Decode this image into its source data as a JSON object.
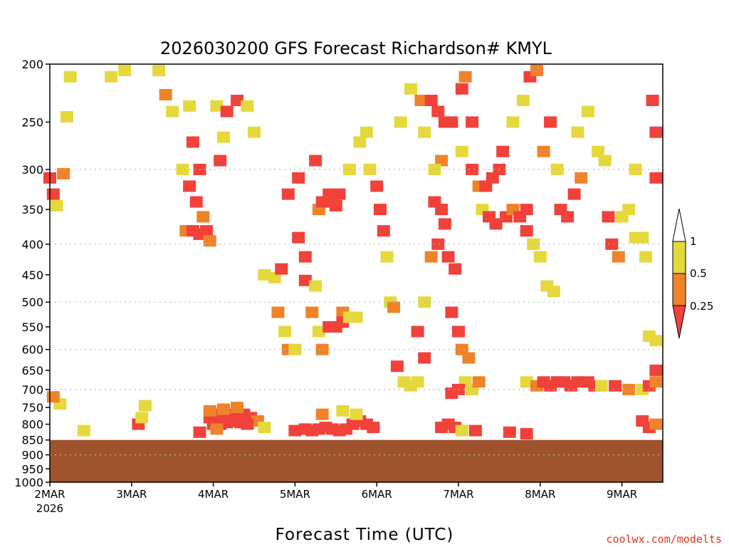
{
  "chart_data": {
    "type": "heatmap",
    "title": "2026030200 GFS Forecast Richardson# KMYL",
    "xlabel": "Forecast Time (UTC)",
    "ylabel": "",
    "credit": "coolwx.com/modelts",
    "y_axis": {
      "scale": "log-pressure",
      "range_hpa": [
        1000,
        200
      ],
      "ticks": [
        200,
        250,
        300,
        350,
        400,
        450,
        500,
        550,
        600,
        650,
        700,
        750,
        800,
        850,
        900,
        950,
        1000
      ],
      "dotted_gridlines_hpa": [
        300,
        400,
        500,
        600,
        700,
        900,
        1000
      ]
    },
    "x_axis": {
      "ticks": [
        {
          "label": "2MAR",
          "sublabel": "2026"
        },
        {
          "label": "3MAR"
        },
        {
          "label": "4MAR"
        },
        {
          "label": "5MAR"
        },
        {
          "label": "6MAR"
        },
        {
          "label": "7MAR"
        },
        {
          "label": "8MAR"
        },
        {
          "label": "9MAR"
        }
      ],
      "range_hours": [
        0,
        180
      ],
      "tick_hours": [
        0,
        24,
        48,
        72,
        96,
        120,
        144,
        168
      ]
    },
    "colorbar": {
      "levels": [
        "1",
        "0.5",
        "0.25"
      ],
      "bins": [
        {
          "range": "0.5-1",
          "color": "#e5d83c"
        },
        {
          "range": "0.25-0.5",
          "color": "#ee8329"
        },
        {
          "range": "<0.25",
          "color": "#f0413b"
        }
      ],
      "above_color": "#ffffff"
    },
    "surface_color": "#a0522d",
    "surface_pressure_hpa": 850,
    "colors": {
      "yellow": "#e5d83c",
      "orange": "#ee8329",
      "red": "#f0413b",
      "ground": "#a0522d"
    },
    "cells": [
      {
        "t": 6,
        "p": 210,
        "c": "y"
      },
      {
        "t": 18,
        "p": 210,
        "c": "y"
      },
      {
        "t": 22,
        "p": 205,
        "c": "y"
      },
      {
        "t": 32,
        "p": 205,
        "c": "y"
      },
      {
        "t": 34,
        "p": 225,
        "c": "o"
      },
      {
        "t": 36,
        "p": 240,
        "c": "y"
      },
      {
        "t": 41,
        "p": 235,
        "c": "y"
      },
      {
        "t": 42,
        "p": 270,
        "c": "r"
      },
      {
        "t": 44,
        "p": 300,
        "c": "r"
      },
      {
        "t": 39,
        "p": 300,
        "c": "y"
      },
      {
        "t": 41,
        "p": 320,
        "c": "r"
      },
      {
        "t": 43,
        "p": 340,
        "c": "r"
      },
      {
        "t": 45,
        "p": 360,
        "c": "o"
      },
      {
        "t": 40,
        "p": 380,
        "c": "o"
      },
      {
        "t": 42,
        "p": 380,
        "c": "r"
      },
      {
        "t": 44,
        "p": 385,
        "c": "r"
      },
      {
        "t": 46,
        "p": 380,
        "c": "r"
      },
      {
        "t": 47,
        "p": 395,
        "c": "o"
      },
      {
        "t": 49,
        "p": 235,
        "c": "y"
      },
      {
        "t": 51,
        "p": 265,
        "c": "y"
      },
      {
        "t": 50,
        "p": 290,
        "c": "r"
      },
      {
        "t": 52,
        "p": 240,
        "c": "r"
      },
      {
        "t": 55,
        "p": 230,
        "c": "r"
      },
      {
        "t": 58,
        "p": 235,
        "c": "y"
      },
      {
        "t": 0,
        "p": 310,
        "c": "r"
      },
      {
        "t": 1,
        "p": 330,
        "c": "r"
      },
      {
        "t": 4,
        "p": 305,
        "c": "o"
      },
      {
        "t": 2,
        "p": 345,
        "c": "y"
      },
      {
        "t": 5,
        "p": 245,
        "c": "y"
      },
      {
        "t": 60,
        "p": 260,
        "c": "y"
      },
      {
        "t": 63,
        "p": 450,
        "c": "y"
      },
      {
        "t": 66,
        "p": 455,
        "c": "y"
      },
      {
        "t": 68,
        "p": 440,
        "c": "r"
      },
      {
        "t": 67,
        "p": 520,
        "c": "o"
      },
      {
        "t": 69,
        "p": 560,
        "c": "y"
      },
      {
        "t": 70,
        "p": 600,
        "c": "o"
      },
      {
        "t": 72,
        "p": 600,
        "c": "y"
      },
      {
        "t": 70,
        "p": 330,
        "c": "r"
      },
      {
        "t": 73,
        "p": 310,
        "c": "r"
      },
      {
        "t": 73,
        "p": 390,
        "c": "r"
      },
      {
        "t": 75,
        "p": 420,
        "c": "r"
      },
      {
        "t": 75,
        "p": 460,
        "c": "r"
      },
      {
        "t": 78,
        "p": 470,
        "c": "y"
      },
      {
        "t": 77,
        "p": 520,
        "c": "o"
      },
      {
        "t": 79,
        "p": 560,
        "c": "y"
      },
      {
        "t": 80,
        "p": 600,
        "c": "o"
      },
      {
        "t": 78,
        "p": 290,
        "c": "r"
      },
      {
        "t": 79,
        "p": 350,
        "c": "o"
      },
      {
        "t": 80,
        "p": 340,
        "c": "r"
      },
      {
        "t": 81,
        "p": 340,
        "c": "r"
      },
      {
        "t": 83,
        "p": 340,
        "c": "r"
      },
      {
        "t": 84,
        "p": 345,
        "c": "r"
      },
      {
        "t": 85,
        "p": 330,
        "c": "r"
      },
      {
        "t": 82,
        "p": 330,
        "c": "r"
      },
      {
        "t": 82,
        "p": 550,
        "c": "r"
      },
      {
        "t": 84,
        "p": 550,
        "c": "r"
      },
      {
        "t": 86,
        "p": 520,
        "c": "o"
      },
      {
        "t": 86,
        "p": 540,
        "c": "r"
      },
      {
        "t": 88,
        "p": 530,
        "c": "y"
      },
      {
        "t": 90,
        "p": 530,
        "c": "y"
      },
      {
        "t": 88,
        "p": 300,
        "c": "y"
      },
      {
        "t": 91,
        "p": 270,
        "c": "y"
      },
      {
        "t": 93,
        "p": 260,
        "c": "y"
      },
      {
        "t": 94,
        "p": 300,
        "c": "y"
      },
      {
        "t": 96,
        "p": 320,
        "c": "r"
      },
      {
        "t": 97,
        "p": 350,
        "c": "r"
      },
      {
        "t": 98,
        "p": 380,
        "c": "r"
      },
      {
        "t": 99,
        "p": 420,
        "c": "y"
      },
      {
        "t": 100,
        "p": 500,
        "c": "y"
      },
      {
        "t": 101,
        "p": 510,
        "c": "o"
      },
      {
        "t": 102,
        "p": 640,
        "c": "r"
      },
      {
        "t": 104,
        "p": 680,
        "c": "y"
      },
      {
        "t": 106,
        "p": 690,
        "c": "y"
      },
      {
        "t": 108,
        "p": 680,
        "c": "y"
      },
      {
        "t": 110,
        "p": 620,
        "c": "r"
      },
      {
        "t": 108,
        "p": 560,
        "c": "r"
      },
      {
        "t": 110,
        "p": 500,
        "c": "y"
      },
      {
        "t": 103,
        "p": 250,
        "c": "y"
      },
      {
        "t": 106,
        "p": 220,
        "c": "y"
      },
      {
        "t": 109,
        "p": 230,
        "c": "o"
      },
      {
        "t": 110,
        "p": 260,
        "c": "y"
      },
      {
        "t": 112,
        "p": 230,
        "c": "r"
      },
      {
        "t": 114,
        "p": 240,
        "c": "r"
      },
      {
        "t": 116,
        "p": 250,
        "c": "r"
      },
      {
        "t": 118,
        "p": 250,
        "c": "r"
      },
      {
        "t": 115,
        "p": 290,
        "c": "o"
      },
      {
        "t": 113,
        "p": 300,
        "c": "y"
      },
      {
        "t": 113,
        "p": 340,
        "c": "r"
      },
      {
        "t": 115,
        "p": 350,
        "c": "r"
      },
      {
        "t": 116,
        "p": 370,
        "c": "r"
      },
      {
        "t": 114,
        "p": 400,
        "c": "r"
      },
      {
        "t": 117,
        "p": 420,
        "c": "r"
      },
      {
        "t": 112,
        "p": 420,
        "c": "o"
      },
      {
        "t": 119,
        "p": 440,
        "c": "r"
      },
      {
        "t": 118,
        "p": 520,
        "c": "r"
      },
      {
        "t": 120,
        "p": 560,
        "c": "r"
      },
      {
        "t": 121,
        "p": 600,
        "c": "o"
      },
      {
        "t": 123,
        "p": 620,
        "c": "o"
      },
      {
        "t": 122,
        "p": 680,
        "c": "y"
      },
      {
        "t": 120,
        "p": 700,
        "c": "r"
      },
      {
        "t": 118,
        "p": 710,
        "c": "r"
      },
      {
        "t": 124,
        "p": 700,
        "c": "y"
      },
      {
        "t": 126,
        "p": 680,
        "c": "o"
      },
      {
        "t": 122,
        "p": 210,
        "c": "o"
      },
      {
        "t": 121,
        "p": 220,
        "c": "r"
      },
      {
        "t": 124,
        "p": 250,
        "c": "r"
      },
      {
        "t": 121,
        "p": 280,
        "c": "y"
      },
      {
        "t": 124,
        "p": 300,
        "c": "r"
      },
      {
        "t": 126,
        "p": 320,
        "c": "o"
      },
      {
        "t": 128,
        "p": 320,
        "c": "r"
      },
      {
        "t": 130,
        "p": 310,
        "c": "r"
      },
      {
        "t": 132,
        "p": 300,
        "c": "r"
      },
      {
        "t": 133,
        "p": 280,
        "c": "r"
      },
      {
        "t": 127,
        "p": 350,
        "c": "y"
      },
      {
        "t": 129,
        "p": 360,
        "c": "r"
      },
      {
        "t": 131,
        "p": 370,
        "c": "r"
      },
      {
        "t": 134,
        "p": 360,
        "c": "r"
      },
      {
        "t": 136,
        "p": 350,
        "c": "o"
      },
      {
        "t": 138,
        "p": 360,
        "c": "r"
      },
      {
        "t": 140,
        "p": 350,
        "c": "r"
      },
      {
        "t": 140,
        "p": 380,
        "c": "r"
      },
      {
        "t": 142,
        "p": 400,
        "c": "y"
      },
      {
        "t": 144,
        "p": 420,
        "c": "y"
      },
      {
        "t": 146,
        "p": 470,
        "c": "y"
      },
      {
        "t": 148,
        "p": 480,
        "c": "y"
      },
      {
        "t": 136,
        "p": 250,
        "c": "y"
      },
      {
        "t": 139,
        "p": 230,
        "c": "y"
      },
      {
        "t": 141,
        "p": 210,
        "c": "r"
      },
      {
        "t": 143,
        "p": 205,
        "c": "o"
      },
      {
        "t": 145,
        "p": 280,
        "c": "o"
      },
      {
        "t": 147,
        "p": 250,
        "c": "r"
      },
      {
        "t": 149,
        "p": 300,
        "c": "y"
      },
      {
        "t": 150,
        "p": 350,
        "c": "r"
      },
      {
        "t": 152,
        "p": 360,
        "c": "r"
      },
      {
        "t": 154,
        "p": 330,
        "c": "r"
      },
      {
        "t": 156,
        "p": 310,
        "c": "o"
      },
      {
        "t": 155,
        "p": 260,
        "c": "y"
      },
      {
        "t": 158,
        "p": 240,
        "c": "y"
      },
      {
        "t": 161,
        "p": 280,
        "c": "y"
      },
      {
        "t": 163,
        "p": 290,
        "c": "y"
      },
      {
        "t": 164,
        "p": 360,
        "c": "r"
      },
      {
        "t": 165,
        "p": 400,
        "c": "r"
      },
      {
        "t": 167,
        "p": 420,
        "c": "o"
      },
      {
        "t": 168,
        "p": 360,
        "c": "y"
      },
      {
        "t": 170,
        "p": 350,
        "c": "y"
      },
      {
        "t": 172,
        "p": 300,
        "c": "y"
      },
      {
        "t": 172,
        "p": 390,
        "c": "y"
      },
      {
        "t": 174,
        "p": 390,
        "c": "y"
      },
      {
        "t": 175,
        "p": 420,
        "c": "y"
      },
      {
        "t": 177,
        "p": 230,
        "c": "r"
      },
      {
        "t": 178,
        "p": 260,
        "c": "r"
      },
      {
        "t": 178,
        "p": 310,
        "c": "r"
      },
      {
        "t": 176,
        "p": 570,
        "c": "y"
      },
      {
        "t": 178,
        "p": 580,
        "c": "y"
      },
      {
        "t": 140,
        "p": 680,
        "c": "y"
      },
      {
        "t": 143,
        "p": 690,
        "c": "o"
      },
      {
        "t": 145,
        "p": 680,
        "c": "r"
      },
      {
        "t": 147,
        "p": 690,
        "c": "r"
      },
      {
        "t": 149,
        "p": 680,
        "c": "r"
      },
      {
        "t": 151,
        "p": 680,
        "c": "r"
      },
      {
        "t": 153,
        "p": 690,
        "c": "r"
      },
      {
        "t": 155,
        "p": 680,
        "c": "r"
      },
      {
        "t": 158,
        "p": 680,
        "c": "r"
      },
      {
        "t": 160,
        "p": 690,
        "c": "r"
      },
      {
        "t": 162,
        "p": 690,
        "c": "y"
      },
      {
        "t": 166,
        "p": 690,
        "c": "r"
      },
      {
        "t": 170,
        "p": 700,
        "c": "o"
      },
      {
        "t": 174,
        "p": 700,
        "c": "y"
      },
      {
        "t": 176,
        "p": 690,
        "c": "r"
      },
      {
        "t": 178,
        "p": 680,
        "c": "o"
      },
      {
        "t": 178,
        "p": 650,
        "c": "r"
      },
      {
        "t": 47,
        "p": 780,
        "c": "r"
      },
      {
        "t": 49,
        "p": 770,
        "c": "r"
      },
      {
        "t": 51,
        "p": 765,
        "c": "r"
      },
      {
        "t": 53,
        "p": 770,
        "c": "r"
      },
      {
        "t": 55,
        "p": 760,
        "c": "r"
      },
      {
        "t": 57,
        "p": 770,
        "c": "r"
      },
      {
        "t": 59,
        "p": 780,
        "c": "r"
      },
      {
        "t": 61,
        "p": 790,
        "c": "o"
      },
      {
        "t": 48,
        "p": 800,
        "c": "r"
      },
      {
        "t": 50,
        "p": 800,
        "c": "r"
      },
      {
        "t": 52,
        "p": 795,
        "c": "r"
      },
      {
        "t": 54,
        "p": 790,
        "c": "r"
      },
      {
        "t": 56,
        "p": 795,
        "c": "r"
      },
      {
        "t": 58,
        "p": 800,
        "c": "r"
      },
      {
        "t": 47,
        "p": 760,
        "c": "o"
      },
      {
        "t": 51,
        "p": 755,
        "c": "o"
      },
      {
        "t": 55,
        "p": 750,
        "c": "o"
      },
      {
        "t": 49,
        "p": 815,
        "c": "o"
      },
      {
        "t": 44,
        "p": 825,
        "c": "r"
      },
      {
        "t": 63,
        "p": 810,
        "c": "y"
      },
      {
        "t": 72,
        "p": 820,
        "c": "r"
      },
      {
        "t": 75,
        "p": 815,
        "c": "r"
      },
      {
        "t": 77,
        "p": 820,
        "c": "r"
      },
      {
        "t": 79,
        "p": 815,
        "c": "r"
      },
      {
        "t": 81,
        "p": 810,
        "c": "r"
      },
      {
        "t": 83,
        "p": 815,
        "c": "r"
      },
      {
        "t": 85,
        "p": 820,
        "c": "r"
      },
      {
        "t": 87,
        "p": 815,
        "c": "r"
      },
      {
        "t": 89,
        "p": 800,
        "c": "r"
      },
      {
        "t": 91,
        "p": 790,
        "c": "r"
      },
      {
        "t": 93,
        "p": 800,
        "c": "r"
      },
      {
        "t": 95,
        "p": 810,
        "c": "r"
      },
      {
        "t": 90,
        "p": 770,
        "c": "y"
      },
      {
        "t": 86,
        "p": 760,
        "c": "y"
      },
      {
        "t": 80,
        "p": 770,
        "c": "o"
      },
      {
        "t": 115,
        "p": 810,
        "c": "r"
      },
      {
        "t": 117,
        "p": 800,
        "c": "r"
      },
      {
        "t": 119,
        "p": 810,
        "c": "r"
      },
      {
        "t": 121,
        "p": 820,
        "c": "y"
      },
      {
        "t": 125,
        "p": 820,
        "c": "r"
      },
      {
        "t": 135,
        "p": 825,
        "c": "r"
      },
      {
        "t": 140,
        "p": 830,
        "c": "r"
      },
      {
        "t": 176,
        "p": 810,
        "c": "r"
      },
      {
        "t": 178,
        "p": 800,
        "c": "o"
      },
      {
        "t": 174,
        "p": 790,
        "c": "r"
      },
      {
        "t": 26,
        "p": 800,
        "c": "r"
      },
      {
        "t": 27,
        "p": 780,
        "c": "y"
      },
      {
        "t": 28,
        "p": 745,
        "c": "y"
      },
      {
        "t": 10,
        "p": 820,
        "c": "y"
      },
      {
        "t": 3,
        "p": 740,
        "c": "y"
      },
      {
        "t": 1,
        "p": 720,
        "c": "o"
      }
    ]
  }
}
